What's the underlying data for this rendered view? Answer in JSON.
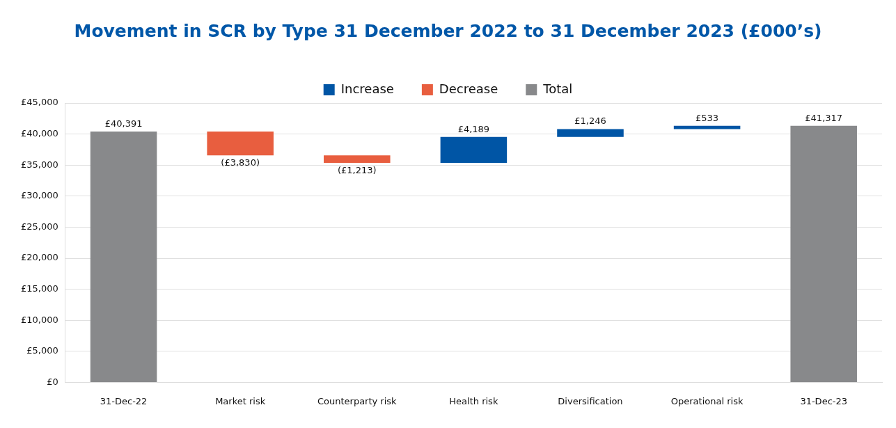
{
  "chart_data": {
    "type": "bar",
    "title": "Movement in SCR by Type 31 December 2022 to 31 December 2023 (£000’s)",
    "categories": [
      "31-Dec-22",
      "Market risk",
      "Counterparty risk",
      "Health risk",
      "Diversification",
      "Operational risk",
      "31-Dec-23"
    ],
    "series": [
      {
        "name": "Increase",
        "color": "#0055a5",
        "values": [
          null,
          null,
          null,
          4189,
          1246,
          533,
          null
        ],
        "base": [
          null,
          null,
          null,
          35348,
          39537,
          40783,
          null
        ],
        "value_labels": [
          null,
          null,
          null,
          "£4,189",
          "£1,246",
          "£533",
          null
        ]
      },
      {
        "name": "Decrease",
        "color": "#e85e3f",
        "values": [
          null,
          -3830,
          -1213,
          null,
          null,
          null,
          null
        ],
        "base": [
          null,
          40391,
          36561,
          null,
          null,
          null,
          null
        ],
        "value_labels": [
          null,
          "(£3,830)",
          "(£1,213)",
          null,
          null,
          null,
          null
        ]
      },
      {
        "name": "Total",
        "color": "#88898b",
        "values": [
          40391,
          null,
          null,
          null,
          null,
          null,
          41317
        ],
        "base": [
          0,
          null,
          null,
          null,
          null,
          null,
          0
        ],
        "value_labels": [
          "£40,391",
          null,
          null,
          null,
          null,
          null,
          "£41,317"
        ]
      }
    ],
    "ylim": [
      0,
      45000
    ],
    "yticks": [
      {
        "value": 0,
        "label": "£0"
      },
      {
        "value": 5000,
        "label": "£5,000"
      },
      {
        "value": 10000,
        "label": "£10,000"
      },
      {
        "value": 15000,
        "label": "£15,000"
      },
      {
        "value": 20000,
        "label": "£20,000"
      },
      {
        "value": 25000,
        "label": "£25,000"
      },
      {
        "value": 30000,
        "label": "£30,000"
      },
      {
        "value": 35000,
        "label": "£35,000"
      },
      {
        "value": 40000,
        "label": "£40,000"
      },
      {
        "value": 45000,
        "label": "£45,000"
      }
    ],
    "grid": "y",
    "legend": "top"
  }
}
